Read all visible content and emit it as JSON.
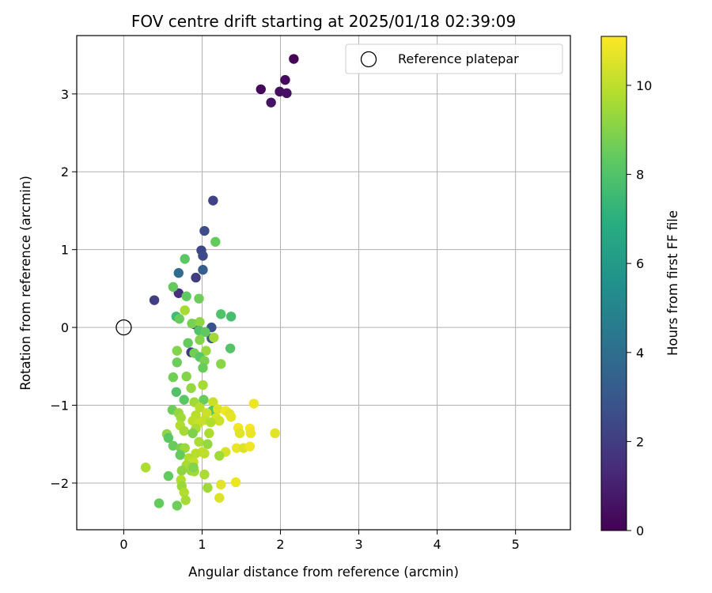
{
  "chart_data": {
    "type": "scatter",
    "title": "FOV centre drift starting at 2025/01/18 02:39:09",
    "xlabel": "Angular distance from reference (arcmin)",
    "ylabel": "Rotation from reference (arcmin)",
    "xlim": [
      -0.6,
      5.7
    ],
    "ylim": [
      -2.6,
      3.75
    ],
    "xticks": [
      0,
      1,
      2,
      3,
      4,
      5
    ],
    "yticks": [
      -2,
      -1,
      0,
      1,
      2,
      3
    ],
    "grid": true,
    "legend": {
      "location": "upper-right",
      "entries": [
        "Reference platepar"
      ]
    },
    "colormap": "viridis",
    "colorbar": {
      "label": "Hours from first FF file",
      "range": [
        0,
        11.1
      ],
      "ticks": [
        0,
        2,
        4,
        6,
        8,
        10
      ]
    },
    "reference_point": {
      "x": 0,
      "y": 0,
      "marker": "open-circle",
      "label": "Reference platepar"
    },
    "points": [
      {
        "x": 2.17,
        "y": 3.45,
        "c": 0.1
      },
      {
        "x": 1.75,
        "y": 3.06,
        "c": 0.2
      },
      {
        "x": 2.06,
        "y": 3.18,
        "c": 0.3
      },
      {
        "x": 1.99,
        "y": 3.03,
        "c": 0.4
      },
      {
        "x": 2.08,
        "y": 3.01,
        "c": 0.5
      },
      {
        "x": 1.88,
        "y": 2.89,
        "c": 0.6
      },
      {
        "x": 1.14,
        "y": 1.63,
        "c": 2.2
      },
      {
        "x": 1.03,
        "y": 1.24,
        "c": 2.6
      },
      {
        "x": 0.99,
        "y": 0.99,
        "c": 2.4
      },
      {
        "x": 1.01,
        "y": 0.92,
        "c": 2.5
      },
      {
        "x": 1.01,
        "y": 0.74,
        "c": 3.3
      },
      {
        "x": 0.7,
        "y": 0.7,
        "c": 3.9
      },
      {
        "x": 0.92,
        "y": 0.64,
        "c": 2.0
      },
      {
        "x": 0.7,
        "y": 0.44,
        "c": 1.5
      },
      {
        "x": 0.39,
        "y": 0.35,
        "c": 2.1
      },
      {
        "x": 0.9,
        "y": 0.04,
        "c": 1.6
      },
      {
        "x": 1.12,
        "y": 0.0,
        "c": 2.8
      },
      {
        "x": 1.12,
        "y": -0.14,
        "c": 2.9
      },
      {
        "x": 0.86,
        "y": -0.32,
        "c": 1.9
      },
      {
        "x": 1.17,
        "y": 1.1,
        "c": 8.4
      },
      {
        "x": 0.78,
        "y": 0.88,
        "c": 8.2
      },
      {
        "x": 0.63,
        "y": 0.52,
        "c": 8.4
      },
      {
        "x": 0.8,
        "y": 0.4,
        "c": 8.3
      },
      {
        "x": 0.96,
        "y": 0.37,
        "c": 8.6
      },
      {
        "x": 0.78,
        "y": 0.22,
        "c": 9.6
      },
      {
        "x": 1.24,
        "y": 0.17,
        "c": 8.0
      },
      {
        "x": 0.67,
        "y": 0.14,
        "c": 7.6
      },
      {
        "x": 1.37,
        "y": 0.14,
        "c": 7.8
      },
      {
        "x": 0.71,
        "y": 0.11,
        "c": 8.5
      },
      {
        "x": 0.87,
        "y": 0.05,
        "c": 8.8
      },
      {
        "x": 0.97,
        "y": 0.07,
        "c": 9.2
      },
      {
        "x": 0.96,
        "y": -0.04,
        "c": 8.0
      },
      {
        "x": 1.04,
        "y": -0.06,
        "c": 8.3
      },
      {
        "x": 1.15,
        "y": -0.13,
        "c": 9.5
      },
      {
        "x": 0.82,
        "y": -0.2,
        "c": 8.4
      },
      {
        "x": 0.97,
        "y": -0.16,
        "c": 9.0
      },
      {
        "x": 1.36,
        "y": -0.27,
        "c": 8.1
      },
      {
        "x": 0.68,
        "y": -0.3,
        "c": 9.0
      },
      {
        "x": 1.05,
        "y": -0.3,
        "c": 9.4
      },
      {
        "x": 0.9,
        "y": -0.33,
        "c": 8.7
      },
      {
        "x": 0.97,
        "y": -0.38,
        "c": 8.2
      },
      {
        "x": 1.03,
        "y": -0.43,
        "c": 8.9
      },
      {
        "x": 0.68,
        "y": -0.45,
        "c": 8.6
      },
      {
        "x": 1.24,
        "y": -0.47,
        "c": 9.1
      },
      {
        "x": 1.01,
        "y": -0.52,
        "c": 8.5
      },
      {
        "x": 0.63,
        "y": -0.64,
        "c": 8.7
      },
      {
        "x": 0.8,
        "y": -0.63,
        "c": 9.0
      },
      {
        "x": 0.86,
        "y": -0.78,
        "c": 9.3
      },
      {
        "x": 1.01,
        "y": -0.74,
        "c": 9.6
      },
      {
        "x": 0.67,
        "y": -0.83,
        "c": 8.0
      },
      {
        "x": 0.77,
        "y": -0.93,
        "c": 8.2
      },
      {
        "x": 1.02,
        "y": -0.93,
        "c": 8.5
      },
      {
        "x": 0.9,
        "y": -0.96,
        "c": 9.5
      },
      {
        "x": 1.14,
        "y": -0.96,
        "c": 10.2
      },
      {
        "x": 0.62,
        "y": -1.06,
        "c": 8.6
      },
      {
        "x": 0.97,
        "y": -1.03,
        "c": 9.9
      },
      {
        "x": 1.13,
        "y": -1.07,
        "c": 8.1
      },
      {
        "x": 0.7,
        "y": -1.1,
        "c": 9.3
      },
      {
        "x": 1.06,
        "y": -1.1,
        "c": 10.3
      },
      {
        "x": 1.2,
        "y": -1.05,
        "c": 10.5
      },
      {
        "x": 1.3,
        "y": -1.07,
        "c": 10.9
      },
      {
        "x": 0.92,
        "y": -1.13,
        "c": 9.9
      },
      {
        "x": 0.73,
        "y": -1.16,
        "c": 9.5
      },
      {
        "x": 1.18,
        "y": -1.16,
        "c": 10.4
      },
      {
        "x": 1.66,
        "y": -0.98,
        "c": 10.8
      },
      {
        "x": 1.35,
        "y": -1.11,
        "c": 10.6
      },
      {
        "x": 1.37,
        "y": -1.15,
        "c": 10.7
      },
      {
        "x": 0.88,
        "y": -1.2,
        "c": 10.0
      },
      {
        "x": 1.03,
        "y": -1.19,
        "c": 10.1
      },
      {
        "x": 1.22,
        "y": -1.2,
        "c": 10.3
      },
      {
        "x": 0.96,
        "y": -1.23,
        "c": 10.2
      },
      {
        "x": 1.11,
        "y": -1.22,
        "c": 9.8
      },
      {
        "x": 0.72,
        "y": -1.26,
        "c": 9.8
      },
      {
        "x": 0.77,
        "y": -1.33,
        "c": 9.6
      },
      {
        "x": 0.92,
        "y": -1.3,
        "c": 9.7
      },
      {
        "x": 1.46,
        "y": -1.29,
        "c": 10.9
      },
      {
        "x": 1.61,
        "y": -1.3,
        "c": 11.0
      },
      {
        "x": 0.55,
        "y": -1.37,
        "c": 9.2
      },
      {
        "x": 0.88,
        "y": -1.36,
        "c": 8.9
      },
      {
        "x": 1.09,
        "y": -1.36,
        "c": 9.7
      },
      {
        "x": 1.48,
        "y": -1.36,
        "c": 10.6
      },
      {
        "x": 1.62,
        "y": -1.36,
        "c": 10.8
      },
      {
        "x": 1.93,
        "y": -1.36,
        "c": 10.6
      },
      {
        "x": 0.57,
        "y": -1.42,
        "c": 8.2
      },
      {
        "x": 0.96,
        "y": -1.47,
        "c": 9.7
      },
      {
        "x": 0.63,
        "y": -1.52,
        "c": 8.5
      },
      {
        "x": 0.73,
        "y": -1.55,
        "c": 8.8
      },
      {
        "x": 0.78,
        "y": -1.55,
        "c": 9.4
      },
      {
        "x": 1.07,
        "y": -1.5,
        "c": 9.3
      },
      {
        "x": 1.44,
        "y": -1.55,
        "c": 10.8
      },
      {
        "x": 1.53,
        "y": -1.55,
        "c": 10.5
      },
      {
        "x": 1.61,
        "y": -1.53,
        "c": 10.9
      },
      {
        "x": 1.0,
        "y": -1.6,
        "c": 10.2
      },
      {
        "x": 1.3,
        "y": -1.6,
        "c": 10.4
      },
      {
        "x": 0.72,
        "y": -1.64,
        "c": 8.4
      },
      {
        "x": 0.92,
        "y": -1.62,
        "c": 9.9
      },
      {
        "x": 1.03,
        "y": -1.62,
        "c": 10.0
      },
      {
        "x": 1.22,
        "y": -1.65,
        "c": 9.5
      },
      {
        "x": 0.83,
        "y": -1.68,
        "c": 9.8
      },
      {
        "x": 0.89,
        "y": -1.73,
        "c": 10.1
      },
      {
        "x": 0.8,
        "y": -1.77,
        "c": 9.6
      },
      {
        "x": 0.28,
        "y": -1.8,
        "c": 9.7
      },
      {
        "x": 0.74,
        "y": -1.84,
        "c": 9.2
      },
      {
        "x": 0.86,
        "y": -1.84,
        "c": 9.3
      },
      {
        "x": 0.9,
        "y": -1.85,
        "c": 9.5
      },
      {
        "x": 0.89,
        "y": -1.8,
        "c": 9.0
      },
      {
        "x": 1.03,
        "y": -1.89,
        "c": 9.7
      },
      {
        "x": 0.57,
        "y": -1.91,
        "c": 8.4
      },
      {
        "x": 0.73,
        "y": -1.96,
        "c": 9.8
      },
      {
        "x": 1.43,
        "y": -1.99,
        "c": 10.8
      },
      {
        "x": 0.74,
        "y": -2.04,
        "c": 9.4
      },
      {
        "x": 1.24,
        "y": -2.02,
        "c": 10.6
      },
      {
        "x": 1.07,
        "y": -2.06,
        "c": 9.5
      },
      {
        "x": 0.77,
        "y": -2.12,
        "c": 9.8
      },
      {
        "x": 1.22,
        "y": -2.19,
        "c": 10.5
      },
      {
        "x": 0.79,
        "y": -2.22,
        "c": 9.6
      },
      {
        "x": 0.45,
        "y": -2.26,
        "c": 8.4
      },
      {
        "x": 0.68,
        "y": -2.29,
        "c": 8.6
      }
    ]
  }
}
